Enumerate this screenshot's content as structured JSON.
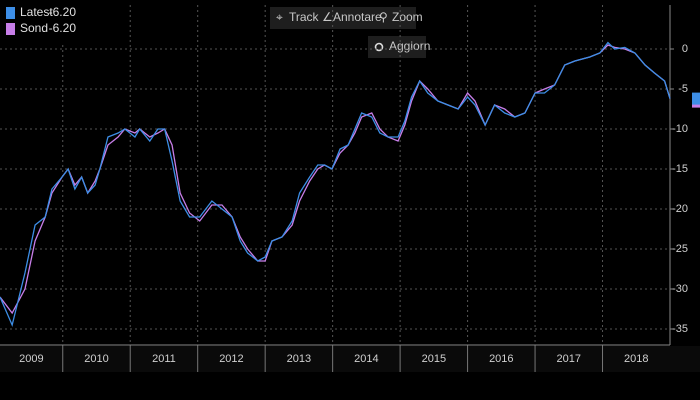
{
  "toolbar": {
    "buttons": [
      "Track",
      "Annotare",
      "Zoom"
    ],
    "refresh": "Aggiorn"
  },
  "chart_data": {
    "type": "line",
    "x": [
      2009.07,
      2009.25,
      2009.44,
      2009.59,
      2009.74,
      2009.84,
      2009.99,
      2010.08,
      2010.18,
      2010.28,
      2010.37,
      2010.48,
      2010.55,
      2010.67,
      2010.82,
      2010.92,
      2011.07,
      2011.14,
      2011.29,
      2011.41,
      2011.51,
      2011.62,
      2011.74,
      2011.88,
      2012.03,
      2012.21,
      2012.36,
      2012.51,
      2012.63,
      2012.74,
      2012.89,
      2013.0,
      2013.1,
      2013.25,
      2013.4,
      2013.51,
      2013.66,
      2013.78,
      2013.88,
      2013.99,
      2014.11,
      2014.23,
      2014.33,
      2014.43,
      2014.58,
      2014.7,
      2014.82,
      2014.97,
      2015.07,
      2015.17,
      2015.29,
      2015.41,
      2015.56,
      2015.71,
      2015.86,
      2016.0,
      2016.11,
      2016.26,
      2016.4,
      2016.55,
      2016.7,
      2016.85,
      2017.0,
      2017.14,
      2017.29,
      2017.44,
      2017.59,
      2017.81,
      2017.96,
      2018.08,
      2018.18,
      2018.33,
      2018.48,
      2018.63,
      2018.77,
      2018.92,
      2019.0
    ],
    "series": [
      {
        "name": "Latest",
        "color": "#3d8ee6",
        "last_value_label": "-6.20",
        "values": [
          -31,
          -34.5,
          -28,
          -22,
          -21,
          -17.5,
          -16,
          -15,
          -17.5,
          -16,
          -18,
          -17,
          -15,
          -11,
          -10.5,
          -10,
          -11,
          -10,
          -11.5,
          -10,
          -10,
          -14,
          -19,
          -21,
          -21,
          -19,
          -20,
          -21,
          -24,
          -25.5,
          -26.5,
          -26,
          -24,
          -23.5,
          -21.5,
          -18,
          -16,
          -14.5,
          -14.5,
          -15,
          -12.5,
          -12,
          -10,
          -8,
          -8.5,
          -10.5,
          -11,
          -11,
          -9,
          -6,
          -4,
          -5.5,
          -6.5,
          -7,
          -7.5,
          -6,
          -7,
          -9.5,
          -7,
          -8,
          -8.5,
          -8,
          -5.5,
          -5.5,
          -4.5,
          -2,
          -1.5,
          -1,
          -0.5,
          0.8,
          0,
          0.2,
          -0.5,
          -2,
          -3,
          -4,
          -6.2
        ]
      },
      {
        "name": "Sond",
        "color": "#c77ee8",
        "last_value_label": "-6.20",
        "values": [
          -31,
          -33,
          -30,
          -24,
          -21,
          -18,
          -16,
          -15,
          -17,
          -16,
          -18,
          -16.5,
          -15,
          -12,
          -11,
          -10,
          -10.5,
          -10,
          -11,
          -10.5,
          -10,
          -12,
          -18,
          -20.5,
          -21.5,
          -19.5,
          -19.5,
          -21,
          -23.5,
          -25,
          -26.5,
          -26.5,
          -24,
          -23.5,
          -22,
          -19,
          -16.5,
          -15,
          -14.5,
          -15,
          -13,
          -12,
          -10.5,
          -8.5,
          -8,
          -10,
          -11,
          -11.5,
          -9.5,
          -6.5,
          -4,
          -5,
          -6.5,
          -7,
          -7.5,
          -5.5,
          -6.5,
          -9.5,
          -7,
          -7.5,
          -8.5,
          -8,
          -5.5,
          -5,
          -4.5,
          -2,
          -1.5,
          -1,
          -0.5,
          0.5,
          0.2,
          0,
          -0.5,
          -2,
          -3,
          -4,
          -6.2
        ]
      }
    ],
    "xlim": [
      2009.07,
      2019.0
    ],
    "xticks": [
      2009,
      2010,
      2011,
      2012,
      2013,
      2014,
      2015,
      2016,
      2017,
      2018
    ],
    "ylim": [
      -37,
      5.5
    ],
    "yticks": [
      0,
      -5,
      -10,
      -15,
      -20,
      -25,
      -30,
      -35
    ],
    "grid": true,
    "legend": "top-left"
  }
}
